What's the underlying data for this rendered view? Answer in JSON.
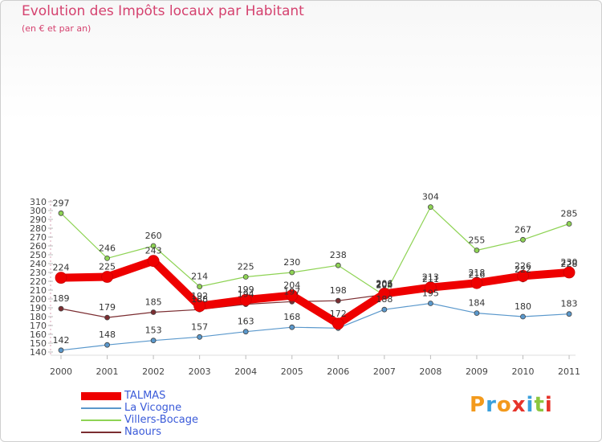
{
  "header": {
    "title": "Evolution des Impôts locaux par Habitant",
    "subtitle": "(en € et par an)"
  },
  "brand": {
    "text": "Proxiti",
    "colors": [
      "#f39a1c",
      "#3aa0dc",
      "#f39a1c",
      "#e6332a",
      "#3aa0dc",
      "#8cc63f",
      "#e6332a"
    ]
  },
  "chart_data": {
    "type": "line",
    "title": "Evolution des Impôts locaux par Habitant",
    "subtitle": "(en € et par an)",
    "xlabel": "",
    "ylabel": "",
    "x": [
      "2000",
      "2001",
      "2002",
      "2003",
      "2004",
      "2005",
      "2006",
      "2007",
      "2008",
      "2009",
      "2010",
      "2011"
    ],
    "ylim": [
      140,
      310
    ],
    "yticks": [
      140,
      150,
      160,
      170,
      180,
      190,
      200,
      210,
      220,
      230,
      240,
      250,
      260,
      270,
      280,
      290,
      300,
      310
    ],
    "grid": false,
    "legend": "bottom-left",
    "series": [
      {
        "name": "La Vicogne",
        "color": "#5a98cc",
        "values": [
          142,
          148,
          153,
          157,
          163,
          168,
          167,
          188,
          195,
          184,
          180,
          183
        ],
        "labels": [
          "142",
          "148",
          "153",
          "157",
          "163",
          "168",
          "",
          "188",
          "195",
          "184",
          "180",
          "183"
        ]
      },
      {
        "name": "Villers-Bocage",
        "color": "#8ed354",
        "values": [
          297,
          246,
          260,
          214,
          225,
          230,
          238,
          204,
          304,
          255,
          267,
          285
        ],
        "labels": [
          "297",
          "246",
          "260",
          "214",
          "225",
          "230",
          "238",
          "204",
          "304",
          "255",
          "267",
          "285"
        ]
      },
      {
        "name": "Naours",
        "color": "#7b2d31",
        "values": [
          189,
          179,
          185,
          188,
          194,
          197,
          198,
          205,
          211,
          216,
          222,
          228
        ],
        "labels": [
          "189",
          "179",
          "185",
          "188",
          "194",
          "197",
          "198",
          "205",
          "211",
          "216",
          "222",
          "228"
        ]
      },
      {
        "name": "TALMAS",
        "color": "#ee0000",
        "values": [
          224,
          225,
          243,
          192,
          199,
          204,
          172,
          206,
          213,
          218,
          226,
          230
        ],
        "labels": [
          "224",
          "225",
          "243",
          "192",
          "199",
          "204",
          "172",
          "206",
          "213",
          "218",
          "226",
          "230"
        ]
      }
    ],
    "legend_order": [
      "TALMAS",
      "La Vicogne",
      "Villers-Bocage",
      "Naours"
    ]
  }
}
